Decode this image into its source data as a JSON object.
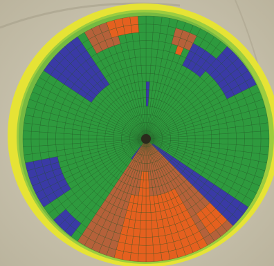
{
  "map": {
    "kind": "center-pivot field prescription map over aerial imagery",
    "zone_colors": {
      "green": "#2e9a3e",
      "blue": "#3a3aa6",
      "brown": "#b5613a",
      "orange": "#e5601f"
    },
    "background_colors": {
      "bare_soil": "#c9c4b1",
      "edge_yellow": "#e6e335",
      "edge_lime": "#9ccd3f",
      "edge_green": "#6bb542",
      "pivot_center": "#2a2a1c",
      "grid_line": "#1d4a22"
    },
    "grid": {
      "rings": 15,
      "sectors": 96
    },
    "zones": [
      {
        "color": "blue",
        "start_deg": 238,
        "end_deg": 258,
        "inner_ring": 11,
        "outer_ring": 15
      },
      {
        "color": "blue",
        "start_deg": 200,
        "end_deg": 207,
        "inner_ring": 1,
        "outer_ring": 15
      },
      {
        "color": "blue",
        "start_deg": 198,
        "end_deg": 215,
        "inner_ring": 10,
        "outer_ring": 15
      },
      {
        "color": "blue",
        "start_deg": 305,
        "end_deg": 325,
        "inner_ring": 8,
        "outer_ring": 15
      },
      {
        "color": "blue",
        "start_deg": 0,
        "end_deg": 5,
        "inner_ring": 4,
        "outer_ring": 7
      },
      {
        "color": "blue",
        "start_deg": 25,
        "end_deg": 40,
        "inner_ring": 10,
        "outer_ring": 13
      },
      {
        "color": "blue",
        "start_deg": 40,
        "end_deg": 64,
        "inner_ring": 11,
        "outer_ring": 15
      },
      {
        "color": "blue",
        "start_deg": 123,
        "end_deg": 135,
        "inner_ring": 1,
        "outer_ring": 15
      },
      {
        "color": "blue",
        "start_deg": 143,
        "end_deg": 150,
        "inner_ring": 13,
        "outer_ring": 15
      },
      {
        "color": "blue",
        "start_deg": 212,
        "end_deg": 219,
        "inner_ring": 1,
        "outer_ring": 3
      },
      {
        "color": "blue",
        "start_deg": 219,
        "end_deg": 228,
        "inner_ring": 13,
        "outer_ring": 15
      },
      {
        "color": "brown",
        "start_deg": 134,
        "end_deg": 213,
        "inner_ring": 0,
        "outer_ring": 15
      },
      {
        "color": "brown",
        "start_deg": 330,
        "end_deg": 345,
        "inner_ring": 12,
        "outer_ring": 15
      },
      {
        "color": "brown",
        "start_deg": 15,
        "end_deg": 25,
        "inner_ring": 12,
        "outer_ring": 14
      },
      {
        "color": "orange",
        "start_deg": 150,
        "end_deg": 195,
        "inner_ring": 7,
        "outer_ring": 15
      },
      {
        "color": "orange",
        "start_deg": 175,
        "end_deg": 188,
        "inner_ring": 4,
        "outer_ring": 8
      },
      {
        "color": "orange",
        "start_deg": 135,
        "end_deg": 148,
        "inner_ring": 11,
        "outer_ring": 14
      },
      {
        "color": "orange",
        "start_deg": 340,
        "end_deg": 356,
        "inner_ring": 13,
        "outer_ring": 15
      },
      {
        "color": "orange",
        "start_deg": 18,
        "end_deg": 24,
        "inner_ring": 11,
        "outer_ring": 12
      }
    ]
  }
}
